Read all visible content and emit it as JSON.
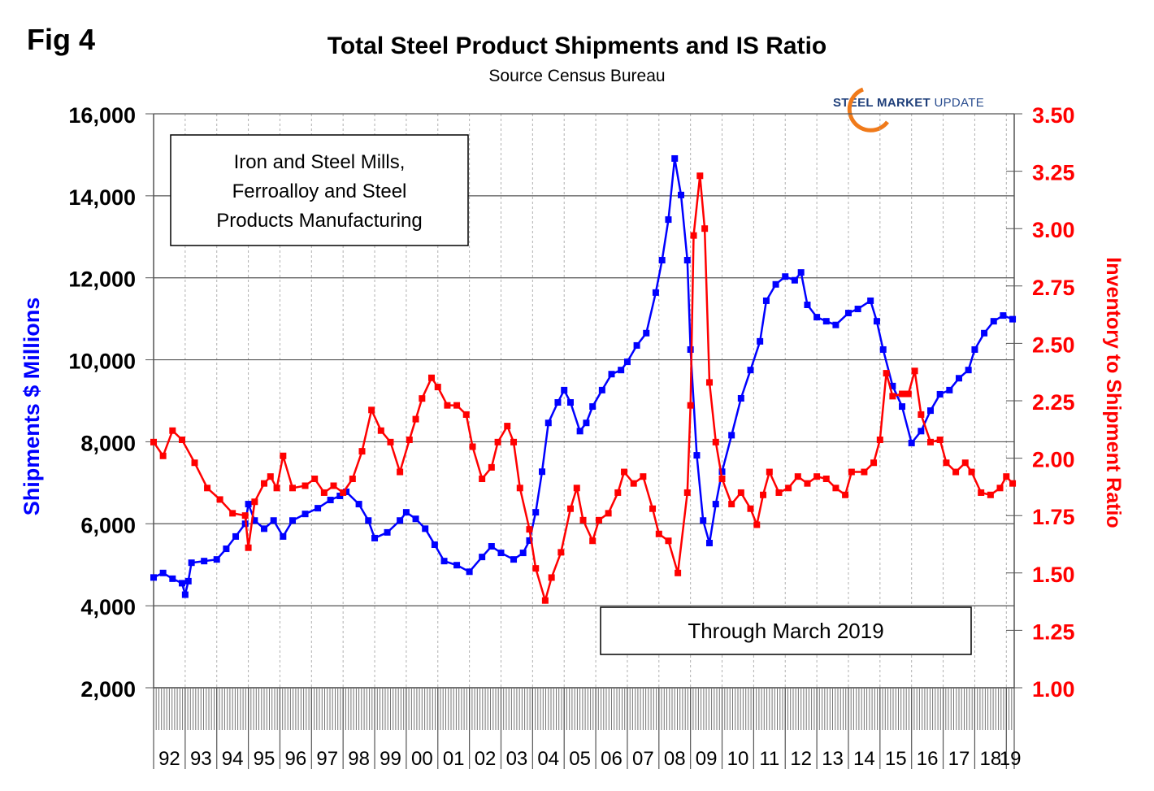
{
  "figure_label": "Fig 4",
  "logo": {
    "bold": "STEEL MARKET",
    "light": "UPDATE",
    "icon": "orange-swoosh-icon"
  },
  "chart_data": {
    "type": "line",
    "title": "Total Steel Product Shipments and IS Ratio",
    "subtitle": "Source Census Bureau",
    "ylabel": "Shipments $ Millions",
    "y2label": "Inventory to Shipment Ratio",
    "ylim": [
      2000,
      16000
    ],
    "y2lim": [
      1.0,
      3.5
    ],
    "xlim": [
      1992,
      2019.25
    ],
    "yticks": [
      "2,000",
      "4,000",
      "6,000",
      "8,000",
      "10,000",
      "12,000",
      "14,000",
      "16,000"
    ],
    "y2ticks": [
      "1.00",
      "1.25",
      "1.50",
      "1.75",
      "2.00",
      "2.25",
      "2.50",
      "2.75",
      "3.00",
      "3.25",
      "3.50"
    ],
    "xticks": [
      "92",
      "93",
      "94",
      "95",
      "96",
      "97",
      "98",
      "99",
      "00",
      "01",
      "02",
      "03",
      "04",
      "05",
      "06",
      "07",
      "08",
      "09",
      "10",
      "11",
      "12",
      "13",
      "14",
      "15",
      "16",
      "17",
      "18",
      "19"
    ],
    "grid": true,
    "colors": {
      "shipments": "#0000ff",
      "ratio": "#ff0000",
      "ylabel": "#0000ff",
      "y2label": "#ff0000"
    },
    "annotations": [
      {
        "name": "industry-note",
        "lines": [
          "Iron and Steel Mills,",
          "Ferroalloy and Steel",
          "Products Manufacturing"
        ]
      },
      {
        "name": "date-note",
        "lines": [
          "Through March 2019"
        ]
      }
    ],
    "series": [
      {
        "name": "Shipments",
        "axis": "left",
        "x": [
          1992.0,
          1992.3,
          1992.6,
          1992.9,
          1993.0,
          1993.1,
          1993.2,
          1993.6,
          1994.0,
          1994.3,
          1994.6,
          1994.9,
          1995.0,
          1995.2,
          1995.5,
          1995.8,
          1996.1,
          1996.4,
          1996.8,
          1997.2,
          1997.6,
          1997.9,
          1998.1,
          1998.5,
          1998.8,
          1999.0,
          1999.4,
          1999.8,
          2000.0,
          2000.3,
          2000.6,
          2000.9,
          2001.2,
          2001.6,
          2002.0,
          2002.4,
          2002.7,
          2003.0,
          2003.4,
          2003.7,
          2003.9,
          2004.1,
          2004.3,
          2004.5,
          2004.8,
          2005.0,
          2005.2,
          2005.5,
          2005.7,
          2005.9,
          2006.2,
          2006.5,
          2006.8,
          2007.0,
          2007.3,
          2007.6,
          2007.9,
          2008.1,
          2008.3,
          2008.5,
          2008.7,
          2008.9,
          2009.0,
          2009.2,
          2009.4,
          2009.6,
          2009.8,
          2010.0,
          2010.3,
          2010.6,
          2010.9,
          2011.2,
          2011.4,
          2011.7,
          2012.0,
          2012.3,
          2012.5,
          2012.7,
          2013.0,
          2013.3,
          2013.6,
          2014.0,
          2014.3,
          2014.7,
          2014.9,
          2015.1,
          2015.4,
          2015.7,
          2016.0,
          2016.3,
          2016.6,
          2016.9,
          2017.2,
          2017.5,
          2017.8,
          2018.0,
          2018.3,
          2018.6,
          2018.9,
          2019.2
        ],
        "values": [
          4690,
          4800,
          4660,
          4550,
          4270,
          4600,
          5050,
          5090,
          5130,
          5390,
          5690,
          6000,
          6480,
          6080,
          5880,
          6080,
          5690,
          6080,
          6240,
          6380,
          6580,
          6680,
          6780,
          6480,
          6080,
          5650,
          5790,
          6080,
          6280,
          6120,
          5880,
          5490,
          5090,
          4990,
          4830,
          5190,
          5450,
          5290,
          5130,
          5290,
          5590,
          6280,
          7270,
          8460,
          8960,
          9260,
          8960,
          8260,
          8460,
          8860,
          9260,
          9650,
          9750,
          9950,
          10350,
          10650,
          11640,
          12430,
          13420,
          14910,
          14020,
          12430,
          10250,
          7670,
          6080,
          5530,
          6480,
          7270,
          8160,
          9060,
          9750,
          10450,
          11440,
          11840,
          12030,
          11940,
          12130,
          11340,
          11040,
          10940,
          10850,
          11140,
          11240,
          11440,
          10940,
          10250,
          9360,
          8860,
          7970,
          8260,
          8760,
          9160,
          9260,
          9550,
          9750,
          10250,
          10650,
          10940,
          11080,
          10990
        ]
      },
      {
        "name": "IS Ratio",
        "axis": "right",
        "x": [
          1992.0,
          1992.3,
          1992.6,
          1992.9,
          1993.3,
          1993.7,
          1994.1,
          1994.5,
          1994.9,
          1995.0,
          1995.2,
          1995.5,
          1995.7,
          1995.9,
          1996.1,
          1996.4,
          1996.8,
          1997.1,
          1997.4,
          1997.7,
          1998.0,
          1998.3,
          1998.6,
          1998.9,
          1999.2,
          1999.5,
          1999.8,
          2000.1,
          2000.3,
          2000.5,
          2000.8,
          2001.0,
          2001.3,
          2001.6,
          2001.9,
          2002.1,
          2002.4,
          2002.7,
          2002.9,
          2003.2,
          2003.4,
          2003.6,
          2003.9,
          2004.1,
          2004.4,
          2004.6,
          2004.9,
          2005.2,
          2005.4,
          2005.6,
          2005.9,
          2006.1,
          2006.4,
          2006.7,
          2006.9,
          2007.2,
          2007.5,
          2007.8,
          2008.0,
          2008.3,
          2008.6,
          2008.9,
          2009.0,
          2009.1,
          2009.3,
          2009.45,
          2009.6,
          2009.8,
          2010.0,
          2010.3,
          2010.6,
          2010.9,
          2011.1,
          2011.3,
          2011.5,
          2011.8,
          2012.1,
          2012.4,
          2012.7,
          2013.0,
          2013.3,
          2013.6,
          2013.9,
          2014.1,
          2014.5,
          2014.8,
          2015.0,
          2015.2,
          2015.4,
          2015.7,
          2015.9,
          2016.1,
          2016.3,
          2016.6,
          2016.9,
          2017.1,
          2017.4,
          2017.7,
          2017.9,
          2018.2,
          2018.5,
          2018.8,
          2019.0,
          2019.2
        ],
        "values": [
          2.07,
          2.01,
          2.12,
          2.08,
          1.98,
          1.87,
          1.82,
          1.76,
          1.75,
          1.61,
          1.81,
          1.89,
          1.92,
          1.87,
          2.01,
          1.87,
          1.88,
          1.91,
          1.85,
          1.88,
          1.85,
          1.91,
          2.03,
          2.21,
          2.12,
          2.07,
          1.94,
          2.08,
          2.17,
          2.26,
          2.35,
          2.31,
          2.23,
          2.23,
          2.19,
          2.05,
          1.91,
          1.96,
          2.07,
          2.14,
          2.07,
          1.87,
          1.69,
          1.52,
          1.38,
          1.48,
          1.59,
          1.78,
          1.87,
          1.73,
          1.64,
          1.73,
          1.76,
          1.85,
          1.94,
          1.89,
          1.92,
          1.78,
          1.67,
          1.64,
          1.5,
          1.85,
          2.23,
          2.97,
          3.23,
          3.0,
          2.33,
          2.07,
          1.91,
          1.8,
          1.85,
          1.78,
          1.71,
          1.84,
          1.94,
          1.85,
          1.87,
          1.92,
          1.89,
          1.92,
          1.91,
          1.87,
          1.84,
          1.94,
          1.94,
          1.98,
          2.08,
          2.37,
          2.27,
          2.28,
          2.28,
          2.38,
          2.19,
          2.07,
          2.08,
          1.98,
          1.94,
          1.98,
          1.94,
          1.85,
          1.84,
          1.87,
          1.92,
          1.89
        ]
      }
    ]
  }
}
